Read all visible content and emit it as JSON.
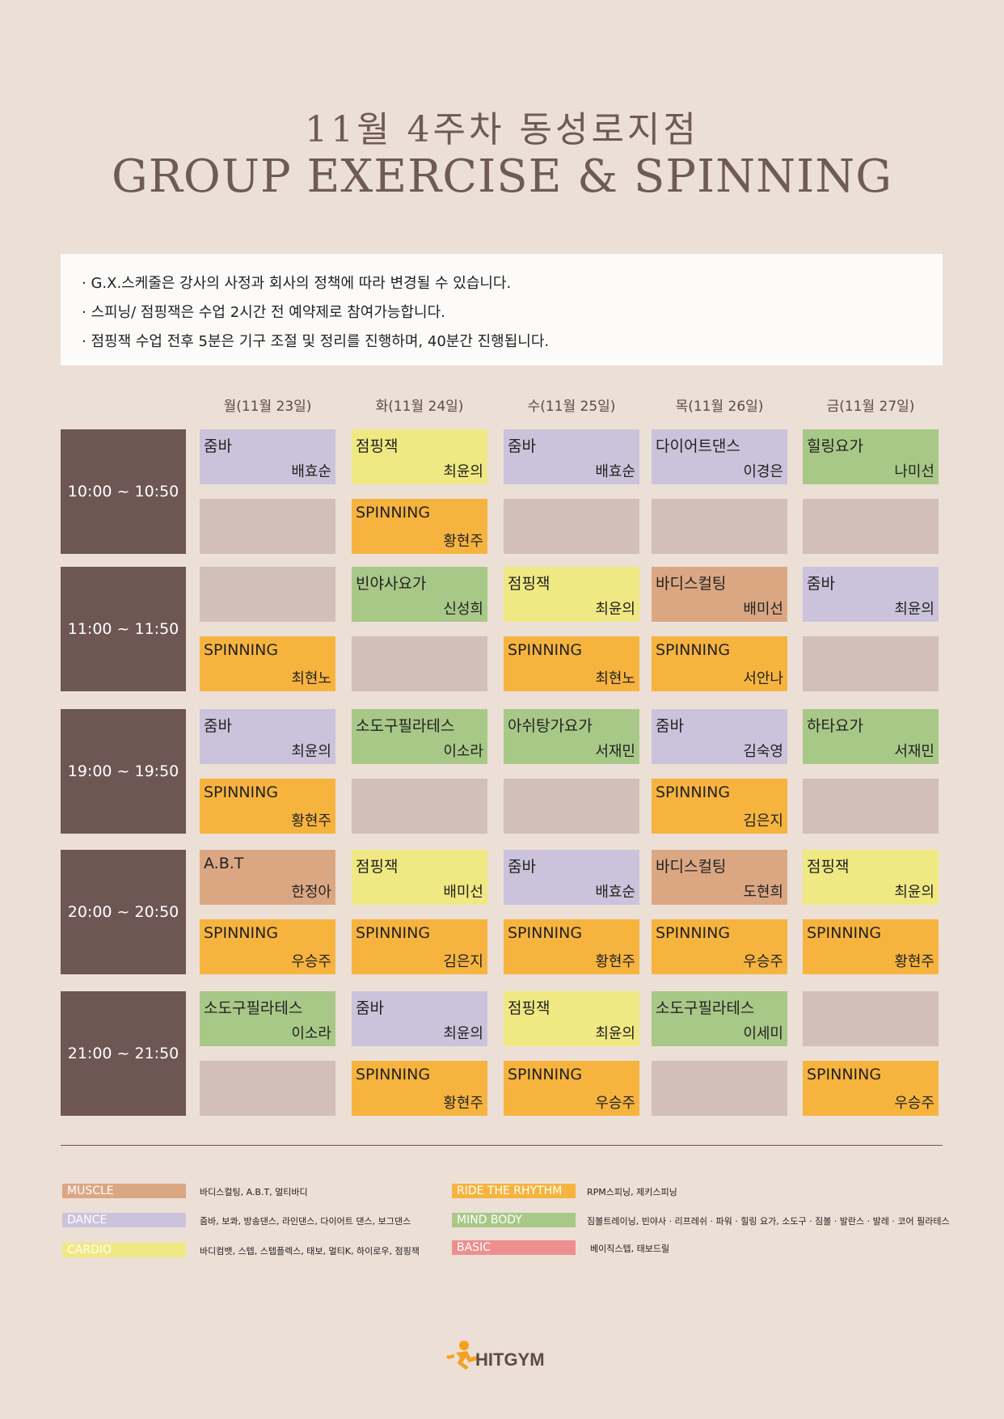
{
  "header": {
    "title_ko": "11월 4주차 동성로지점",
    "title_en": "GROUP EXERCISE & SPINNING"
  },
  "notice": [
    "· G.X.스케줄은 강사의 사정과 회사의 정책에 따라 변경될 수 있습니다.",
    "· 스피닝/ 점핑잭은 수업 2시간 전 예약제로 참여가능합니다.",
    "· 점핑잭 수업 전후 5분은 기구 조절 및 정리를 진행하며, 40분간 진행됩니다."
  ],
  "days": [
    "월(11월 23일)",
    "화(11월 24일)",
    "수(11월 25일)",
    "목(11월 26일)",
    "금(11월 27일)"
  ],
  "colors": {
    "muscle": "#dba783",
    "dance": "#cbc3db",
    "cardio": "#f0e882",
    "ride": "#f6b43f",
    "mind": "#a8c887",
    "basic": "#ee8f8f",
    "empty": "#d2bfb8",
    "time_block": "#6e5653"
  },
  "schedule": [
    {
      "time": "10:00 ~ 10:50",
      "rows": [
        [
          {
            "name": "줌바",
            "instructor": "배효순",
            "cat": "dance"
          },
          {
            "name": "점핑잭",
            "instructor": "최윤의",
            "cat": "cardio"
          },
          {
            "name": "줌바",
            "instructor": "배효순",
            "cat": "dance"
          },
          {
            "name": "다이어트댄스",
            "instructor": "이경은",
            "cat": "dance"
          },
          {
            "name": "힐링요가",
            "instructor": "나미선",
            "cat": "mind"
          }
        ],
        [
          {
            "name": "",
            "instructor": "",
            "cat": "empty"
          },
          {
            "name": "SPINNING",
            "instructor": "황현주",
            "cat": "ride"
          },
          {
            "name": "",
            "instructor": "",
            "cat": "empty"
          },
          {
            "name": "",
            "instructor": "",
            "cat": "empty"
          },
          {
            "name": "",
            "instructor": "",
            "cat": "empty"
          }
        ]
      ]
    },
    {
      "time": "11:00 ~ 11:50",
      "rows": [
        [
          {
            "name": "",
            "instructor": "",
            "cat": "empty"
          },
          {
            "name": "빈야사요가",
            "instructor": "신성희",
            "cat": "mind"
          },
          {
            "name": "점핑잭",
            "instructor": "최윤의",
            "cat": "cardio"
          },
          {
            "name": "바디스컬팅",
            "instructor": "배미선",
            "cat": "muscle"
          },
          {
            "name": "줌바",
            "instructor": "최윤의",
            "cat": "dance"
          }
        ],
        [
          {
            "name": "SPINNING",
            "instructor": "최현노",
            "cat": "ride"
          },
          {
            "name": "",
            "instructor": "",
            "cat": "empty"
          },
          {
            "name": "SPINNING",
            "instructor": "최현노",
            "cat": "ride"
          },
          {
            "name": "SPINNING",
            "instructor": "서안나",
            "cat": "ride"
          },
          {
            "name": "",
            "instructor": "",
            "cat": "empty"
          }
        ]
      ]
    },
    {
      "time": "19:00 ~ 19:50",
      "rows": [
        [
          {
            "name": "줌바",
            "instructor": "최윤의",
            "cat": "dance"
          },
          {
            "name": "소도구필라테스",
            "instructor": "이소라",
            "cat": "mind"
          },
          {
            "name": "아쉬탕가요가",
            "instructor": "서재민",
            "cat": "mind"
          },
          {
            "name": "줌바",
            "instructor": "김숙영",
            "cat": "dance"
          },
          {
            "name": "하타요가",
            "instructor": "서재민",
            "cat": "mind"
          }
        ],
        [
          {
            "name": "SPINNING",
            "instructor": "황현주",
            "cat": "ride"
          },
          {
            "name": "",
            "instructor": "",
            "cat": "empty"
          },
          {
            "name": "",
            "instructor": "",
            "cat": "empty"
          },
          {
            "name": "SPINNING",
            "instructor": "김은지",
            "cat": "ride"
          },
          {
            "name": "",
            "instructor": "",
            "cat": "empty"
          }
        ]
      ]
    },
    {
      "time": "20:00 ~ 20:50",
      "rows": [
        [
          {
            "name": "A.B.T",
            "instructor": "한정아",
            "cat": "muscle"
          },
          {
            "name": "점핑잭",
            "instructor": "배미선",
            "cat": "cardio"
          },
          {
            "name": "줌바",
            "instructor": "배효순",
            "cat": "dance"
          },
          {
            "name": "바디스컬팅",
            "instructor": "도현희",
            "cat": "muscle"
          },
          {
            "name": "점핑잭",
            "instructor": "최윤의",
            "cat": "cardio"
          }
        ],
        [
          {
            "name": "SPINNING",
            "instructor": "우승주",
            "cat": "ride"
          },
          {
            "name": "SPINNING",
            "instructor": "김은지",
            "cat": "ride"
          },
          {
            "name": "SPINNING",
            "instructor": "황현주",
            "cat": "ride"
          },
          {
            "name": "SPINNING",
            "instructor": "우승주",
            "cat": "ride"
          },
          {
            "name": "SPINNING",
            "instructor": "황현주",
            "cat": "ride"
          }
        ]
      ]
    },
    {
      "time": "21:00 ~ 21:50",
      "rows": [
        [
          {
            "name": "소도구필라테스",
            "instructor": "이소라",
            "cat": "mind"
          },
          {
            "name": "줌바",
            "instructor": "최윤의",
            "cat": "dance"
          },
          {
            "name": "점핑잭",
            "instructor": "최윤의",
            "cat": "cardio"
          },
          {
            "name": "소도구필라테스",
            "instructor": "이세미",
            "cat": "mind"
          },
          {
            "name": "",
            "instructor": "",
            "cat": "empty"
          }
        ],
        [
          {
            "name": "",
            "instructor": "",
            "cat": "empty"
          },
          {
            "name": "SPINNING",
            "instructor": "황현주",
            "cat": "ride"
          },
          {
            "name": "SPINNING",
            "instructor": "우승주",
            "cat": "ride"
          },
          {
            "name": "",
            "instructor": "",
            "cat": "empty"
          },
          {
            "name": "SPINNING",
            "instructor": "우승주",
            "cat": "ride"
          }
        ]
      ]
    }
  ],
  "legend": [
    {
      "label": "MUSCLE",
      "desc": "바디스컬팅, A.B.T, 멀티바디",
      "cat": "muscle"
    },
    {
      "label": "DANCE",
      "desc": "줌바, 보콰, 방송댄스, 라인댄스, 다이어트 댄스, 보그댄스",
      "cat": "dance"
    },
    {
      "label": "CARDIO",
      "desc": "바디컴뱃, 스텝, 스텝플렉스, 태보, 멀티K, 하이로우, 점핑잭",
      "cat": "cardio"
    },
    {
      "label": "RIDE THE RHYTHM",
      "desc": "RPM스피닝, 제키스피닝",
      "cat": "ride"
    },
    {
      "label": "MIND BODY",
      "desc": "짐볼트레이닝, 빈야사 · 리프레쉬 · 파워 · 힐링 요가, 소도구 · 짐볼 · 발란스 · 발레 · 코어 필라테스",
      "cat": "mind"
    },
    {
      "label": "BASIC",
      "desc": "베이직스텝, 태보드릴",
      "cat": "basic"
    }
  ],
  "logo": {
    "text": "HITGYM",
    "icon": "runner-icon"
  }
}
